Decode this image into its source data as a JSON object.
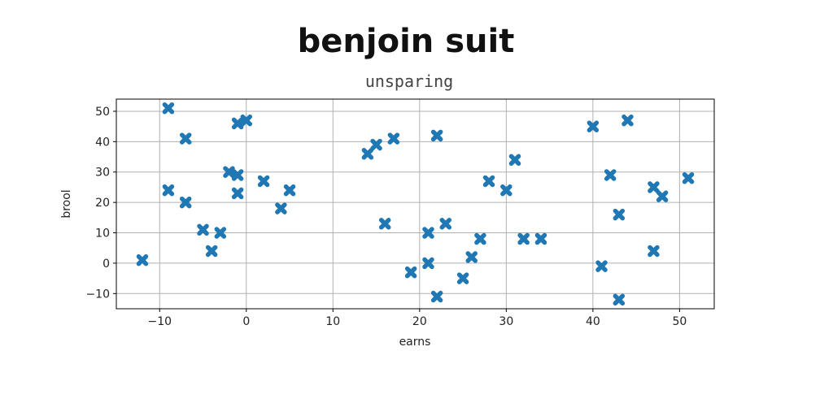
{
  "chart_data": {
    "type": "scatter",
    "title": "benjoin suit",
    "subtitle": "unsparing",
    "xlabel": "earns",
    "ylabel": "brool",
    "xlim": [
      -15,
      54
    ],
    "ylim": [
      -15,
      54
    ],
    "xticks": [
      -10,
      0,
      10,
      20,
      30,
      40,
      50
    ],
    "yticks": [
      -10,
      0,
      10,
      20,
      30,
      40,
      50
    ],
    "grid": true,
    "marker": "X",
    "color": "#1f77b4",
    "points": [
      {
        "x": -12,
        "y": 1
      },
      {
        "x": -9,
        "y": 51
      },
      {
        "x": -9,
        "y": 24
      },
      {
        "x": -7,
        "y": 41
      },
      {
        "x": -7,
        "y": 20
      },
      {
        "x": -5,
        "y": 11
      },
      {
        "x": -4,
        "y": 4
      },
      {
        "x": -3,
        "y": 10
      },
      {
        "x": -2,
        "y": 30
      },
      {
        "x": -1,
        "y": 29
      },
      {
        "x": -1,
        "y": 46
      },
      {
        "x": -1,
        "y": 23
      },
      {
        "x": 0,
        "y": 47
      },
      {
        "x": 2,
        "y": 27
      },
      {
        "x": 4,
        "y": 18
      },
      {
        "x": 5,
        "y": 24
      },
      {
        "x": 14,
        "y": 36
      },
      {
        "x": 15,
        "y": 39
      },
      {
        "x": 16,
        "y": 13
      },
      {
        "x": 17,
        "y": 41
      },
      {
        "x": 19,
        "y": -3
      },
      {
        "x": 21,
        "y": 10
      },
      {
        "x": 21,
        "y": 0
      },
      {
        "x": 22,
        "y": 42
      },
      {
        "x": 22,
        "y": -11
      },
      {
        "x": 23,
        "y": 13
      },
      {
        "x": 25,
        "y": -5
      },
      {
        "x": 26,
        "y": 2
      },
      {
        "x": 27,
        "y": 8
      },
      {
        "x": 28,
        "y": 27
      },
      {
        "x": 30,
        "y": 24
      },
      {
        "x": 31,
        "y": 34
      },
      {
        "x": 32,
        "y": 8
      },
      {
        "x": 34,
        "y": 8
      },
      {
        "x": 40,
        "y": 45
      },
      {
        "x": 41,
        "y": -1
      },
      {
        "x": 42,
        "y": 29
      },
      {
        "x": 43,
        "y": 16
      },
      {
        "x": 43,
        "y": -12
      },
      {
        "x": 44,
        "y": 47
      },
      {
        "x": 47,
        "y": 25
      },
      {
        "x": 47,
        "y": 4
      },
      {
        "x": 48,
        "y": 22
      },
      {
        "x": 51,
        "y": 28
      }
    ]
  }
}
